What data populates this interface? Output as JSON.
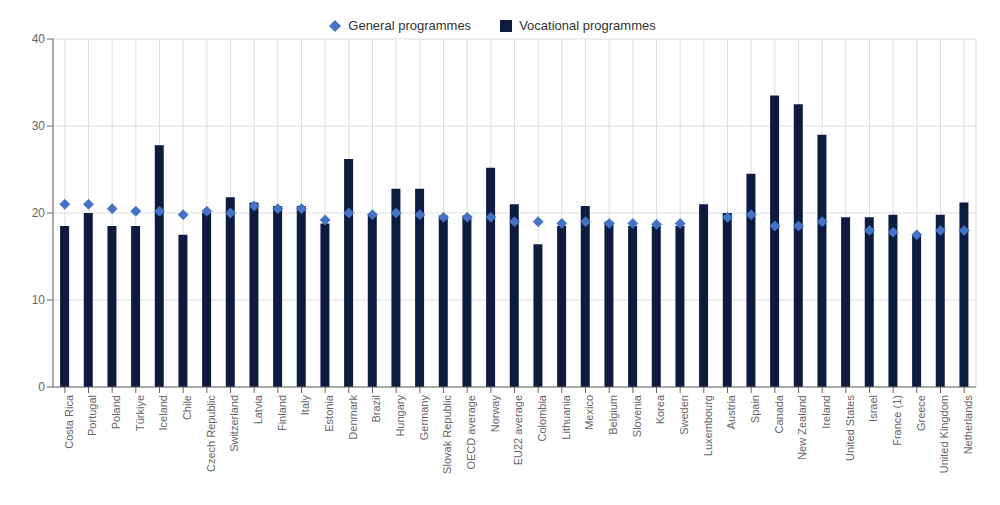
{
  "chart_data": {
    "type": "bar",
    "categories": [
      "Costa Rica",
      "Portugal",
      "Poland",
      "Türkiye",
      "Iceland",
      "Chile",
      "Czech Republic",
      "Switzerland",
      "Latvia",
      "Finland",
      "Italy",
      "Estonia",
      "Denmark",
      "Brazil",
      "Hungary",
      "Germany",
      "Slovak Republic",
      "OECD average",
      "Norway",
      "EU22 average",
      "Colombia",
      "Lithuania",
      "Mexico",
      "Belgium",
      "Slovenia",
      "Korea",
      "Sweden",
      "Luxembourg",
      "Austria",
      "Spain",
      "Canada",
      "New Zealand",
      "Ireland",
      "United States",
      "Israel",
      "France (1)",
      "Greece",
      "United Kingdom",
      "Netherlands"
    ],
    "series": [
      {
        "name": "General programmes",
        "type": "scatter",
        "marker": "diamond",
        "color": "#4472c4",
        "values": [
          21.0,
          21.0,
          20.5,
          20.2,
          20.2,
          19.8,
          20.2,
          20.0,
          20.8,
          20.5,
          20.5,
          19.2,
          20.0,
          19.8,
          20.0,
          19.8,
          19.5,
          19.5,
          19.5,
          19.0,
          19.0,
          18.8,
          19.0,
          18.8,
          18.8,
          18.7,
          18.8,
          null,
          19.5,
          19.8,
          18.5,
          18.5,
          19.0,
          null,
          18.0,
          17.8,
          17.5,
          18.0,
          18.0
        ]
      },
      {
        "name": "Vocational programmes",
        "type": "bar",
        "color": "#0d1b40",
        "values": [
          18.5,
          20.0,
          18.5,
          18.5,
          27.8,
          17.5,
          20.0,
          21.8,
          21.2,
          20.8,
          20.8,
          18.8,
          26.2,
          19.8,
          22.8,
          22.8,
          19.7,
          19.7,
          25.2,
          21.0,
          16.4,
          18.5,
          20.8,
          19.0,
          18.5,
          18.5,
          18.5,
          21.0,
          20.0,
          24.5,
          33.5,
          32.5,
          29.0,
          19.5,
          19.5,
          19.8,
          17.5,
          19.8,
          21.2
        ]
      }
    ],
    "ylim": [
      0,
      40
    ],
    "yticks": [
      0,
      10,
      20,
      30,
      40
    ],
    "grid": true,
    "legend": "top"
  }
}
